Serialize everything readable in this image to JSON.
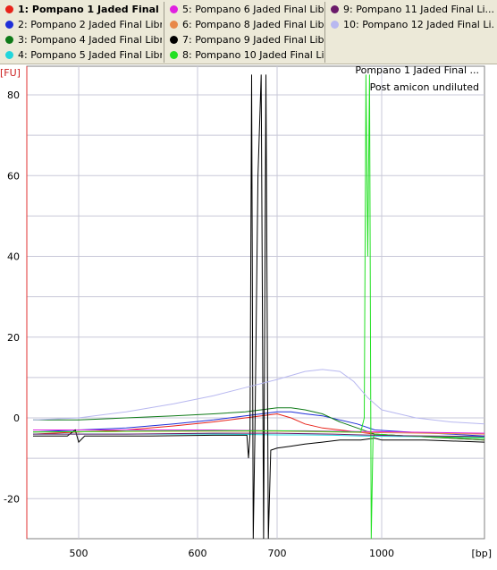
{
  "legend": {
    "columns": [
      [
        {
          "label": "1: Pompano 1 Jaded Final ...",
          "color": "#e8231a",
          "selected": true
        },
        {
          "label": "2: Pompano 2 Jaded Final Libr...",
          "color": "#1f2fd8"
        },
        {
          "label": "3: Pompano 4 Jaded Final Libr...",
          "color": "#0f7a18"
        },
        {
          "label": "4: Pompano 5 Jaded Final Libr...",
          "color": "#22d6dc"
        }
      ],
      [
        {
          "label": "5: Pompano 6 Jaded Final Libr...",
          "color": "#e020e0"
        },
        {
          "label": "6: Pompano 8 Jaded Final Libr...",
          "color": "#e8884a"
        },
        {
          "label": "7: Pompano 9 Jaded Final Libr...",
          "color": "#000000"
        },
        {
          "label": "8: Pompano 10 Jaded Final Li...",
          "color": "#22e022"
        }
      ],
      [
        {
          "label": "9: Pompano 11 Jaded Final Li...",
          "color": "#6a1a6a"
        },
        {
          "label": "10: Pompano 12 Jaded Final Li...",
          "color": "#b8b8f0"
        }
      ]
    ]
  },
  "chart_data": {
    "type": "line",
    "sample_title": "Pompano 1 Jaded Final ...",
    "sample_subtitle": "Post amicon undiluted",
    "xlabel": "[bp]",
    "ylabel": "[FU]",
    "xticks": [
      "500",
      "600",
      "700",
      "1000"
    ],
    "yticks": [
      80,
      60,
      40,
      20,
      0,
      -20
    ],
    "ylim": [
      -30,
      85
    ],
    "grid": true,
    "x_ladder_bp": [
      [
        500,
        500
      ],
      [
        600,
        600
      ],
      [
        700,
        700
      ],
      [
        1000,
        1000
      ]
    ],
    "series": [
      {
        "color": "#e8231a",
        "points": [
          [
            460,
            -4
          ],
          [
            500,
            -3.5
          ],
          [
            540,
            -3
          ],
          [
            580,
            -2
          ],
          [
            620,
            -1
          ],
          [
            660,
            0
          ],
          [
            700,
            1
          ],
          [
            740,
            0
          ],
          [
            780,
            -1.5
          ],
          [
            830,
            -2.5
          ],
          [
            880,
            -3
          ],
          [
            930,
            -3.5
          ],
          [
            980,
            -4
          ],
          [
            1030,
            -4.5
          ],
          [
            1080,
            -5
          ],
          [
            1120,
            -5.5
          ]
        ]
      },
      {
        "color": "#1f2fd8",
        "points": [
          [
            460,
            -3.5
          ],
          [
            500,
            -3
          ],
          [
            540,
            -2.5
          ],
          [
            580,
            -1.5
          ],
          [
            620,
            -0.5
          ],
          [
            660,
            0.5
          ],
          [
            700,
            1.5
          ],
          [
            740,
            1.5
          ],
          [
            780,
            1
          ],
          [
            830,
            0.5
          ],
          [
            880,
            -0.5
          ],
          [
            930,
            -1.5
          ],
          [
            980,
            -3
          ],
          [
            1030,
            -3.5
          ],
          [
            1080,
            -4
          ],
          [
            1120,
            -4.5
          ]
        ]
      },
      {
        "color": "#0f7a18",
        "points": [
          [
            460,
            -0.5
          ],
          [
            500,
            -0.5
          ],
          [
            540,
            0
          ],
          [
            580,
            0.5
          ],
          [
            620,
            1
          ],
          [
            660,
            1.5
          ],
          [
            700,
            2.5
          ],
          [
            740,
            2.5
          ],
          [
            780,
            2
          ],
          [
            830,
            1
          ],
          [
            880,
            -1
          ],
          [
            930,
            -2.5
          ],
          [
            980,
            -4
          ],
          [
            1030,
            -4.5
          ],
          [
            1080,
            -5
          ],
          [
            1120,
            -5.5
          ]
        ]
      },
      {
        "color": "#22d6dc",
        "points": [
          [
            460,
            -4
          ],
          [
            540,
            -4
          ],
          [
            620,
            -4
          ],
          [
            700,
            -4.2
          ],
          [
            780,
            -4.2
          ],
          [
            860,
            -4.3
          ],
          [
            940,
            -4.5
          ],
          [
            1020,
            -4.6
          ],
          [
            1120,
            -4.8
          ]
        ]
      },
      {
        "color": "#e020e0",
        "points": [
          [
            460,
            -3
          ],
          [
            540,
            -3
          ],
          [
            620,
            -3
          ],
          [
            700,
            -3.2
          ],
          [
            780,
            -3.2
          ],
          [
            860,
            -3.3
          ],
          [
            940,
            -3.4
          ],
          [
            1020,
            -3.5
          ],
          [
            1120,
            -3.8
          ]
        ]
      },
      {
        "color": "#e8884a",
        "points": [
          [
            460,
            -3.5
          ],
          [
            540,
            -3.4
          ],
          [
            620,
            -3.3
          ],
          [
            700,
            -3.3
          ],
          [
            780,
            -3.4
          ],
          [
            860,
            -3.5
          ],
          [
            940,
            -3.6
          ],
          [
            1020,
            -3.7
          ],
          [
            1120,
            -4
          ]
        ]
      },
      {
        "color": "#000000",
        "points": [
          [
            460,
            -4.5
          ],
          [
            490,
            -4.5
          ],
          [
            497,
            -3
          ],
          [
            500,
            -6
          ],
          [
            505,
            -4.5
          ],
          [
            560,
            -4.5
          ],
          [
            620,
            -4.3
          ],
          [
            662,
            -4.3
          ],
          [
            664,
            -10
          ],
          [
            666,
            -4
          ],
          [
            668,
            85
          ],
          [
            670,
            -30
          ],
          [
            672,
            -5
          ],
          [
            676,
            60
          ],
          [
            680,
            85
          ],
          [
            683,
            -30
          ],
          [
            686,
            85
          ],
          [
            689,
            -30
          ],
          [
            692,
            -8
          ],
          [
            700,
            -7.5
          ],
          [
            740,
            -7
          ],
          [
            780,
            -6.5
          ],
          [
            830,
            -6
          ],
          [
            880,
            -5.5
          ],
          [
            940,
            -5.5
          ],
          [
            980,
            -5
          ],
          [
            1000,
            -5.5
          ],
          [
            1050,
            -5.5
          ],
          [
            1120,
            -6
          ]
        ]
      },
      {
        "color": "#22e022",
        "points": [
          [
            460,
            -3.5
          ],
          [
            540,
            -3.3
          ],
          [
            620,
            -3.2
          ],
          [
            700,
            -3.2
          ],
          [
            780,
            -3.3
          ],
          [
            850,
            -3.4
          ],
          [
            900,
            -3.5
          ],
          [
            940,
            -3.5
          ],
          [
            950,
            0
          ],
          [
            955,
            85
          ],
          [
            960,
            40
          ],
          [
            965,
            85
          ],
          [
            970,
            -30
          ],
          [
            975,
            -5
          ],
          [
            980,
            -4
          ],
          [
            1030,
            -4.5
          ],
          [
            1120,
            -5
          ]
        ]
      },
      {
        "color": "#6a1a6a",
        "points": [
          [
            460,
            -4
          ],
          [
            540,
            -4
          ],
          [
            620,
            -3.8
          ],
          [
            700,
            -3.8
          ],
          [
            780,
            -3.9
          ],
          [
            860,
            -4
          ],
          [
            940,
            -4.2
          ],
          [
            1020,
            -4.4
          ],
          [
            1120,
            -4.6
          ]
        ]
      },
      {
        "color": "#b8b8f0",
        "points": [
          [
            460,
            -0.5
          ],
          [
            500,
            0
          ],
          [
            540,
            1.5
          ],
          [
            580,
            3.5
          ],
          [
            620,
            5.5
          ],
          [
            660,
            7.5
          ],
          [
            700,
            9.5
          ],
          [
            740,
            10.5
          ],
          [
            780,
            11.5
          ],
          [
            830,
            12
          ],
          [
            880,
            11.5
          ],
          [
            920,
            9
          ],
          [
            960,
            5
          ],
          [
            1000,
            2
          ],
          [
            1040,
            0
          ],
          [
            1080,
            -1
          ],
          [
            1120,
            -1.5
          ]
        ]
      }
    ]
  }
}
